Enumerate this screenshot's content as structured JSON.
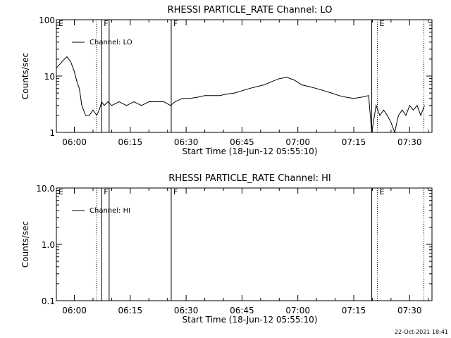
{
  "timestamp": "22-Oct-2021 18:41",
  "chart_data": [
    {
      "type": "line",
      "title": "RHESSI PARTICLE_RATE Channel: LO",
      "xlabel": "Start Time (18-Jun-12 05:55:10)",
      "ylabel": "Counts/sec",
      "yscale": "log",
      "ylim": [
        1,
        100
      ],
      "xlim": [
        "05:55:10",
        "07:36:00"
      ],
      "x_ticks": [
        "06:00",
        "06:15",
        "06:30",
        "06:45",
        "07:00",
        "07:15",
        "07:30"
      ],
      "y_ticks": [
        "1",
        "10",
        "100"
      ],
      "legend": {
        "placement": "top-left",
        "entries": [
          "Channel: LO"
        ]
      },
      "markers": [
        {
          "label": "E",
          "time": "05:55:10",
          "style": "solid"
        },
        {
          "label": "",
          "time": "06:06:00",
          "style": "dotted"
        },
        {
          "label": "F",
          "time": "06:07:20",
          "style": "solid"
        },
        {
          "label": "",
          "time": "06:09:20",
          "style": "solid"
        },
        {
          "label": "F",
          "time": "06:26:00",
          "style": "solid"
        },
        {
          "label": "",
          "time": "07:19:50",
          "style": "solid"
        },
        {
          "label": "E",
          "time": "07:21:20",
          "style": "dotted"
        },
        {
          "label": "",
          "time": "07:33:50",
          "style": "dotted"
        }
      ],
      "series": [
        {
          "name": "Channel: LO",
          "x": [
            "05:55:10",
            "05:56:00",
            "05:57:00",
            "05:58:00",
            "05:59:00",
            "06:00:00",
            "06:00:40",
            "06:01:20",
            "06:02:00",
            "06:03:00",
            "06:04:00",
            "06:05:00",
            "06:06:00",
            "06:06:40",
            "06:07:20",
            "06:08:00",
            "06:09:00",
            "06:10:00",
            "06:12:00",
            "06:14:00",
            "06:16:00",
            "06:18:00",
            "06:20:00",
            "06:22:00",
            "06:24:00",
            "06:25:50",
            "06:27:00",
            "06:29:00",
            "06:31:00",
            "06:33:00",
            "06:35:00",
            "06:37:00",
            "06:39:00",
            "06:41:00",
            "06:43:00",
            "06:45:00",
            "06:47:00",
            "06:49:00",
            "06:51:00",
            "06:53:00",
            "06:55:00",
            "06:57:00",
            "06:59:00",
            "07:01:00",
            "07:03:00",
            "07:05:00",
            "07:07:00",
            "07:09:00",
            "07:11:00",
            "07:13:00",
            "07:15:00",
            "07:17:00",
            "07:19:00",
            "07:19:50",
            "07:21:00",
            "07:22:00",
            "07:23:00",
            "07:24:00",
            "07:25:00",
            "07:26:00",
            "07:27:00",
            "07:28:00",
            "07:29:00",
            "07:30:00",
            "07:31:00",
            "07:32:00",
            "07:33:00",
            "07:34:00"
          ],
          "y": [
            14,
            16,
            19,
            22,
            18,
            12,
            8,
            6,
            3,
            2,
            2,
            2.5,
            2,
            2.5,
            3.5,
            3,
            3.5,
            3,
            3.5,
            3,
            3.5,
            3,
            3.5,
            3.5,
            3.5,
            3,
            3.5,
            4,
            4,
            4.2,
            4.5,
            4.5,
            4.5,
            4.8,
            5,
            5.5,
            6,
            6.5,
            7,
            8,
            9,
            9.5,
            8.5,
            7,
            6.5,
            6,
            5.5,
            5,
            4.5,
            4.2,
            4,
            4.2,
            4.5,
            1,
            3,
            2,
            2.5,
            2,
            1.5,
            1,
            2,
            2.5,
            2,
            3,
            2.5,
            3,
            2,
            3
          ]
        }
      ]
    },
    {
      "type": "line",
      "title": "RHESSI PARTICLE_RATE Channel: HI",
      "xlabel": "Start Time (18-Jun-12 05:55:10)",
      "ylabel": "Counts/sec",
      "yscale": "log",
      "ylim": [
        0.1,
        10
      ],
      "xlim": [
        "05:55:10",
        "07:36:00"
      ],
      "x_ticks": [
        "06:00",
        "06:15",
        "06:30",
        "06:45",
        "07:00",
        "07:15",
        "07:30"
      ],
      "y_ticks": [
        "0.1",
        "1.0",
        "10.0"
      ],
      "legend": {
        "placement": "top-left",
        "entries": [
          "Channel: HI"
        ]
      },
      "markers": [
        {
          "label": "E",
          "time": "05:55:10",
          "style": "solid"
        },
        {
          "label": "",
          "time": "06:06:00",
          "style": "dotted"
        },
        {
          "label": "F",
          "time": "06:07:20",
          "style": "solid"
        },
        {
          "label": "",
          "time": "06:09:20",
          "style": "solid"
        },
        {
          "label": "F",
          "time": "06:26:00",
          "style": "solid"
        },
        {
          "label": "",
          "time": "07:19:50",
          "style": "solid"
        },
        {
          "label": "E",
          "time": "07:21:20",
          "style": "dotted"
        },
        {
          "label": "",
          "time": "07:33:50",
          "style": "dotted"
        }
      ],
      "series": [
        {
          "name": "Channel: HI",
          "x": [],
          "y": []
        }
      ]
    }
  ]
}
